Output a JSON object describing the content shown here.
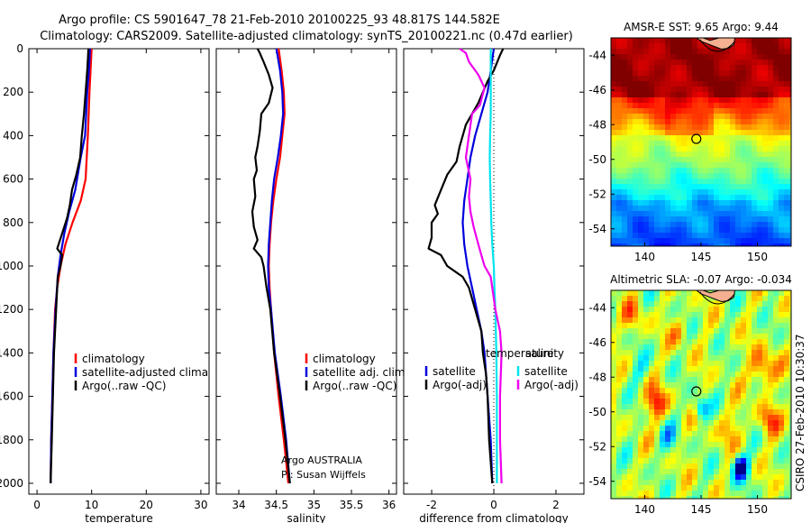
{
  "title_line1": "Argo profile: CS 5901647_78 21-Feb-2010 20100225_93 48.817S 144.582E",
  "title_line2": "Climatology: CARS2009. Satellite-adjusted climatology: synTS_20100221.nc (0.47d earlier)",
  "side_label": "CSIRO 27-Feb-2010 10:30:37",
  "colors": {
    "climatology": "#ff0000",
    "satellite": "#0000dd",
    "argo": "#000000",
    "sat_diff": "#00e5ee",
    "argo_sal": "#ee00ee"
  },
  "chart_data": [
    {
      "type": "line",
      "id": "temperature",
      "xlabel": "temperature",
      "ylabel": "",
      "xlim": [
        -1.5,
        31.5
      ],
      "ylim": [
        2050,
        0
      ],
      "xticks": [
        0,
        10,
        20,
        30
      ],
      "yticks": [
        0,
        200,
        400,
        600,
        800,
        1000,
        1200,
        1400,
        1600,
        1800,
        2000
      ],
      "legend": {
        "placement": "lower-center",
        "entries": [
          "climatology",
          "satellite-adjusted climatology",
          "Argo(..raw -QC)"
        ]
      },
      "series": [
        {
          "name": "climatology",
          "color": "#ff0000",
          "points": [
            [
              10.0,
              0
            ],
            [
              9.9,
              50
            ],
            [
              9.8,
              100
            ],
            [
              9.6,
              200
            ],
            [
              9.3,
              400
            ],
            [
              8.9,
              600
            ],
            [
              8.0,
              700
            ],
            [
              6.5,
              800
            ],
            [
              5.2,
              900
            ],
            [
              4.3,
              1000
            ],
            [
              3.7,
              1100
            ],
            [
              3.3,
              1200
            ],
            [
              3.0,
              1400
            ],
            [
              2.8,
              1600
            ],
            [
              2.6,
              1800
            ],
            [
              2.5,
              2000
            ]
          ]
        },
        {
          "name": "satellite-adjusted climatology",
          "color": "#0000dd",
          "points": [
            [
              9.7,
              0
            ],
            [
              9.6,
              50
            ],
            [
              9.5,
              100
            ],
            [
              9.2,
              200
            ],
            [
              8.8,
              400
            ],
            [
              8.0,
              500
            ],
            [
              7.0,
              650
            ],
            [
              5.9,
              750
            ],
            [
              5.0,
              850
            ],
            [
              4.3,
              950
            ],
            [
              3.8,
              1050
            ],
            [
              3.4,
              1200
            ],
            [
              3.0,
              1400
            ],
            [
              2.8,
              1600
            ],
            [
              2.6,
              1800
            ],
            [
              2.5,
              2000
            ]
          ]
        },
        {
          "name": "Argo(..raw -QC)",
          "color": "#000000",
          "points": [
            [
              9.4,
              0
            ],
            [
              9.3,
              50
            ],
            [
              9.2,
              100
            ],
            [
              8.9,
              200
            ],
            [
              8.6,
              300
            ],
            [
              8.2,
              400
            ],
            [
              7.9,
              500
            ],
            [
              7.2,
              580
            ],
            [
              6.4,
              650
            ],
            [
              6.0,
              720
            ],
            [
              5.5,
              780
            ],
            [
              4.6,
              850
            ],
            [
              3.7,
              920
            ],
            [
              4.6,
              950
            ],
            [
              4.3,
              1000
            ],
            [
              3.8,
              1050
            ],
            [
              3.6,
              1150
            ],
            [
              3.4,
              1250
            ],
            [
              3.1,
              1400
            ],
            [
              2.9,
              1600
            ],
            [
              2.7,
              1800
            ],
            [
              2.5,
              2000
            ]
          ]
        }
      ]
    },
    {
      "type": "line",
      "id": "salinity",
      "xlabel": "salinity",
      "ylabel": "",
      "xlim": [
        33.7,
        36.1
      ],
      "ylim": [
        2050,
        0
      ],
      "xticks": [
        34,
        34.5,
        35,
        35.5,
        36
      ],
      "legend": {
        "placement": "lower-center",
        "entries": [
          "climatology",
          "satellite adj. clim.",
          "Argo(..raw -QC)"
        ]
      },
      "annotation": [
        "Argo AUSTRALIA",
        "PI: Susan Wijffels"
      ],
      "series": [
        {
          "name": "climatology",
          "color": "#ff0000",
          "points": [
            [
              34.53,
              0
            ],
            [
              34.57,
              100
            ],
            [
              34.6,
              200
            ],
            [
              34.61,
              300
            ],
            [
              34.58,
              400
            ],
            [
              34.55,
              500
            ],
            [
              34.5,
              600
            ],
            [
              34.46,
              700
            ],
            [
              34.43,
              800
            ],
            [
              34.41,
              900
            ],
            [
              34.4,
              1000
            ],
            [
              34.41,
              1100
            ],
            [
              34.43,
              1200
            ],
            [
              34.47,
              1400
            ],
            [
              34.53,
              1600
            ],
            [
              34.6,
              1800
            ],
            [
              34.66,
              2000
            ]
          ]
        },
        {
          "name": "satellite adj. clim.",
          "color": "#0000dd",
          "points": [
            [
              34.5,
              0
            ],
            [
              34.55,
              100
            ],
            [
              34.58,
              200
            ],
            [
              34.59,
              300
            ],
            [
              34.56,
              400
            ],
            [
              34.52,
              500
            ],
            [
              34.47,
              600
            ],
            [
              34.44,
              700
            ],
            [
              34.42,
              800
            ],
            [
              34.4,
              900
            ],
            [
              34.39,
              1000
            ],
            [
              34.4,
              1100
            ],
            [
              34.43,
              1200
            ],
            [
              34.48,
              1400
            ],
            [
              34.56,
              1600
            ],
            [
              34.63,
              1800
            ],
            [
              34.68,
              2000
            ]
          ]
        },
        {
          "name": "Argo(..raw -QC)",
          "color": "#000000",
          "points": [
            [
              34.25,
              0
            ],
            [
              34.28,
              20
            ],
            [
              34.33,
              60
            ],
            [
              34.4,
              120
            ],
            [
              34.45,
              180
            ],
            [
              34.4,
              250
            ],
            [
              34.3,
              300
            ],
            [
              34.28,
              380
            ],
            [
              34.25,
              450
            ],
            [
              34.22,
              500
            ],
            [
              34.24,
              560
            ],
            [
              34.2,
              600
            ],
            [
              34.22,
              680
            ],
            [
              34.18,
              750
            ],
            [
              34.2,
              820
            ],
            [
              34.25,
              880
            ],
            [
              34.2,
              920
            ],
            [
              34.3,
              960
            ],
            [
              34.33,
              1000
            ],
            [
              34.37,
              1100
            ],
            [
              34.42,
              1200
            ],
            [
              34.47,
              1400
            ],
            [
              34.55,
              1600
            ],
            [
              34.62,
              1800
            ],
            [
              34.68,
              2000
            ]
          ]
        }
      ]
    },
    {
      "type": "line",
      "id": "difference",
      "xlabel": "difference from climatology",
      "ylabel": "",
      "xlim": [
        -2.9,
        2.9
      ],
      "ylim": [
        2050,
        0
      ],
      "xticks": [
        -2,
        0,
        2
      ],
      "legend": {
        "placement": "lower-center",
        "headers": [
          "temperature",
          "salinity"
        ],
        "entries": [
          "satellite",
          "Argo(-adj)",
          "satellite",
          "Argo(-adj)"
        ]
      },
      "series": [
        {
          "name": "satellite",
          "group": "temperature",
          "color": "#0000dd",
          "points": [
            [
              0.0,
              0
            ],
            [
              -0.05,
              50
            ],
            [
              -0.1,
              100
            ],
            [
              -0.2,
              200
            ],
            [
              -0.4,
              300
            ],
            [
              -0.6,
              400
            ],
            [
              -0.75,
              500
            ],
            [
              -0.85,
              600
            ],
            [
              -0.95,
              700
            ],
            [
              -1.0,
              800
            ],
            [
              -0.95,
              900
            ],
            [
              -0.85,
              1000
            ],
            [
              -0.7,
              1100
            ],
            [
              -0.55,
              1200
            ],
            [
              -0.4,
              1300
            ],
            [
              -0.3,
              1400
            ],
            [
              -0.2,
              1600
            ],
            [
              -0.1,
              1800
            ],
            [
              -0.05,
              2000
            ]
          ]
        },
        {
          "name": "Argo(-adj)",
          "group": "temperature",
          "color": "#000000",
          "points": [
            [
              0.3,
              0
            ],
            [
              0.2,
              30
            ],
            [
              0.0,
              100
            ],
            [
              -0.2,
              150
            ],
            [
              -0.5,
              250
            ],
            [
              -0.9,
              350
            ],
            [
              -1.1,
              450
            ],
            [
              -1.2,
              520
            ],
            [
              -1.5,
              580
            ],
            [
              -1.7,
              650
            ],
            [
              -1.9,
              720
            ],
            [
              -1.8,
              760
            ],
            [
              -2.0,
              800
            ],
            [
              -2.0,
              870
            ],
            [
              -2.1,
              920
            ],
            [
              -1.7,
              950
            ],
            [
              -1.5,
              1000
            ],
            [
              -1.0,
              1050
            ],
            [
              -0.8,
              1100
            ],
            [
              -0.6,
              1200
            ],
            [
              -0.4,
              1300
            ],
            [
              -0.35,
              1400
            ],
            [
              -0.25,
              1500
            ],
            [
              -0.2,
              1600
            ],
            [
              -0.15,
              1800
            ],
            [
              -0.05,
              2000
            ]
          ]
        },
        {
          "name": "satellite",
          "group": "salinity",
          "color": "#00e5ee",
          "points": [
            [
              -0.1,
              0
            ],
            [
              -0.1,
              100
            ],
            [
              -0.1,
              200
            ],
            [
              -0.1,
              300
            ],
            [
              -0.12,
              400
            ],
            [
              -0.13,
              500
            ],
            [
              -0.12,
              600
            ],
            [
              -0.1,
              700
            ],
            [
              -0.08,
              800
            ],
            [
              -0.05,
              900
            ],
            [
              0.0,
              1000
            ],
            [
              0.02,
              1100
            ],
            [
              0.05,
              1200
            ],
            [
              0.08,
              1400
            ],
            [
              0.1,
              1600
            ],
            [
              0.1,
              1800
            ],
            [
              0.1,
              2000
            ]
          ]
        },
        {
          "name": "Argo(-adj)",
          "group": "salinity",
          "color": "#ee00ee",
          "points": [
            [
              -1.1,
              0
            ],
            [
              -0.9,
              20
            ],
            [
              -0.8,
              60
            ],
            [
              -0.5,
              120
            ],
            [
              -0.3,
              180
            ],
            [
              -0.45,
              260
            ],
            [
              -0.7,
              300
            ],
            [
              -0.8,
              400
            ],
            [
              -0.9,
              500
            ],
            [
              -0.75,
              600
            ],
            [
              -0.8,
              680
            ],
            [
              -0.75,
              750
            ],
            [
              -0.65,
              820
            ],
            [
              -0.5,
              900
            ],
            [
              -0.4,
              950
            ],
            [
              -0.3,
              1000
            ],
            [
              -0.1,
              1050
            ],
            [
              0.05,
              1200
            ],
            [
              0.2,
              1300
            ],
            [
              0.25,
              1400
            ],
            [
              0.2,
              1600
            ],
            [
              0.2,
              1800
            ],
            [
              0.25,
              2000
            ]
          ]
        }
      ]
    },
    {
      "type": "heatmap",
      "id": "sst-map",
      "title": "AMSR-E SST: 9.65 Argo: 9.44",
      "xlim": [
        137,
        153
      ],
      "ylim": [
        -55,
        -43
      ],
      "xticks": [
        140,
        145,
        150
      ],
      "yticks": [
        -44,
        -46,
        -48,
        -50,
        -52,
        -54
      ],
      "marker": {
        "lon": 144.58,
        "lat": -48.82
      },
      "colorscale": "jet"
    },
    {
      "type": "heatmap",
      "id": "sla-map",
      "title": "Altimetric SLA: -0.07 Argo: -0.034",
      "xlim": [
        137,
        153
      ],
      "ylim": [
        -55,
        -43
      ],
      "xticks": [
        140,
        145,
        150
      ],
      "yticks": [
        -44,
        -46,
        -48,
        -50,
        -52,
        -54
      ],
      "marker": {
        "lon": 144.58,
        "lat": -48.82
      },
      "colorscale": "jet"
    }
  ]
}
